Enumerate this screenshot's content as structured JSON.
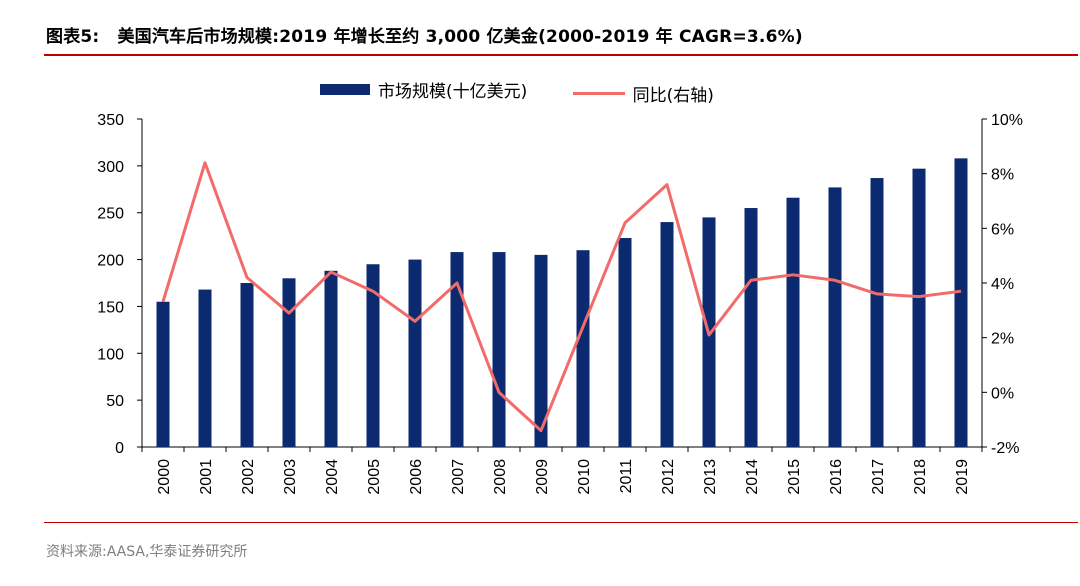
{
  "header": {
    "label": "图表5:",
    "title": "美国汽车后市场规模:2019 年增长至约 3,000 亿美金(2000-2019 年 CAGR=3.6%)"
  },
  "source": "资料来源:AASA,华泰证券研究所",
  "colors": {
    "bar": "#0b2a6f",
    "line": "#f26b6b",
    "rule": "#c00000"
  },
  "chart_data": {
    "type": "bar",
    "categories": [
      "2000",
      "2001",
      "2002",
      "2003",
      "2004",
      "2005",
      "2006",
      "2007",
      "2008",
      "2009",
      "2010",
      "2011",
      "2012",
      "2013",
      "2014",
      "2015",
      "2016",
      "2017",
      "2018",
      "2019"
    ],
    "series": [
      {
        "name": "市场规模(十亿美元)",
        "type": "bar",
        "axis": "left",
        "values": [
          155,
          168,
          175,
          180,
          188,
          195,
          200,
          208,
          208,
          205,
          210,
          223,
          240,
          245,
          255,
          266,
          277,
          287,
          297,
          308
        ]
      },
      {
        "name": "同比(右轴)",
        "type": "line",
        "axis": "right",
        "unit": "%",
        "values": [
          null,
          8.4,
          4.2,
          2.9,
          4.4,
          3.7,
          2.6,
          4.0,
          0.0,
          -1.4,
          2.4,
          6.2,
          7.6,
          2.1,
          4.1,
          4.3,
          4.1,
          3.6,
          3.5,
          3.7
        ]
      }
    ],
    "y_left": {
      "min": 0,
      "max": 350,
      "ticks": [
        "0",
        "50",
        "100",
        "150",
        "200",
        "250",
        "300",
        "350"
      ]
    },
    "y_right": {
      "min": -2,
      "max": 10,
      "ticks": [
        "-2%",
        "0%",
        "2%",
        "4%",
        "6%",
        "8%",
        "10%"
      ]
    },
    "legend": [
      "市场规模(十亿美元)",
      "同比(右轴)"
    ]
  }
}
